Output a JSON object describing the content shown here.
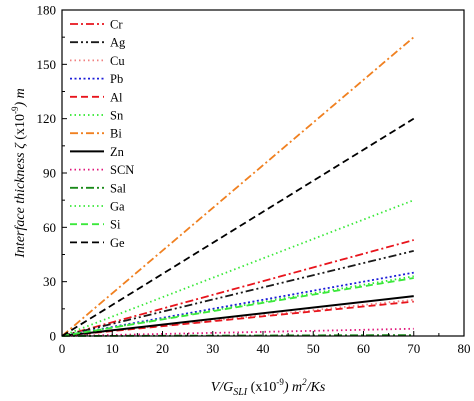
{
  "chart_data": {
    "type": "line",
    "xlabel": {
      "base": "V/G",
      "sub": "SLI",
      "rest": " (x10",
      "sup": "-9",
      "tail": ") m",
      "sup2": "2",
      "end": "/Ks"
    },
    "ylabel": {
      "pre": "Interface thickness ",
      "sym": "ζ",
      "mid": " (x10",
      "sup": "-9",
      "tail": ") m"
    },
    "xlim": [
      0,
      80
    ],
    "ylim": [
      0,
      180
    ],
    "xticks": [
      "0",
      "10",
      "20",
      "30",
      "40",
      "50",
      "60",
      "70",
      "80"
    ],
    "yticks": [
      "0",
      "30",
      "60",
      "90",
      "120",
      "150",
      "180"
    ],
    "legend_position": "top-left",
    "series": [
      {
        "name": "Cr",
        "color": "#e8141c",
        "dash": "dashdot",
        "x": [
          0,
          70
        ],
        "y": [
          0,
          53
        ]
      },
      {
        "name": "Ag",
        "color": "#1a1a1a",
        "dash": "dashdotdot",
        "x": [
          0,
          70
        ],
        "y": [
          0,
          47
        ]
      },
      {
        "name": "Cu",
        "color": "#f08080",
        "dash": "dot",
        "x": [
          0,
          70
        ],
        "y": [
          0,
          20
        ]
      },
      {
        "name": "Pb",
        "color": "#1c1cd8",
        "dash": "shortdot",
        "x": [
          0,
          70
        ],
        "y": [
          0,
          35
        ]
      },
      {
        "name": "Al",
        "color": "#e8141c",
        "dash": "dash",
        "x": [
          0,
          70
        ],
        "y": [
          0,
          19
        ]
      },
      {
        "name": "Sn",
        "color": "#2ee82e",
        "dash": "dot",
        "x": [
          0,
          70
        ],
        "y": [
          0,
          33
        ]
      },
      {
        "name": "Bi",
        "color": "#f08020",
        "dash": "dashdot",
        "x": [
          0,
          70
        ],
        "y": [
          0,
          165
        ]
      },
      {
        "name": "Zn",
        "color": "#000000",
        "dash": "solid",
        "x": [
          0,
          70
        ],
        "y": [
          0,
          22
        ]
      },
      {
        "name": "SCN",
        "color": "#e0157a",
        "dash": "dot",
        "x": [
          0,
          70
        ],
        "y": [
          0,
          4
        ]
      },
      {
        "name": "Sal",
        "color": "#1a8a1a",
        "dash": "dashdot",
        "x": [
          0,
          70
        ],
        "y": [
          0,
          0.5
        ]
      },
      {
        "name": "Ga",
        "color": "#3ae83a",
        "dash": "dot",
        "x": [
          0,
          70
        ],
        "y": [
          0,
          75
        ]
      },
      {
        "name": "Si",
        "color": "#3ae83a",
        "dash": "dash",
        "x": [
          0,
          70
        ],
        "y": [
          0,
          32
        ]
      },
      {
        "name": "Ge",
        "color": "#000000",
        "dash": "dash",
        "x": [
          0,
          70
        ],
        "y": [
          0,
          120
        ]
      }
    ]
  }
}
